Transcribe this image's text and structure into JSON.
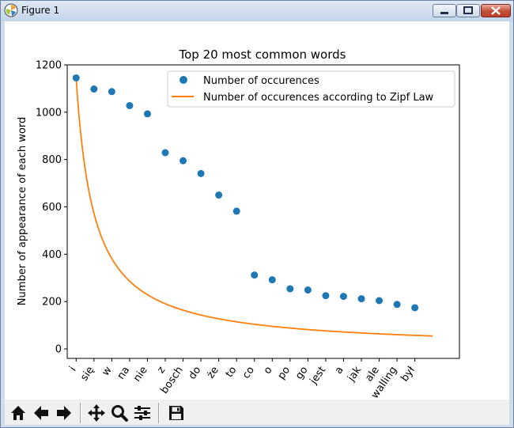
{
  "window": {
    "title": "Figure 1",
    "buttons": {
      "minimize": "minimize",
      "maximize": "maximize",
      "close": "close"
    }
  },
  "toolbar": {
    "items": [
      {
        "name": "home",
        "icon": "home-icon"
      },
      {
        "name": "back",
        "icon": "arrow-left-icon"
      },
      {
        "name": "forward",
        "icon": "arrow-right-icon"
      },
      {
        "name": "pan",
        "icon": "move-icon"
      },
      {
        "name": "zoom",
        "icon": "magnifier-icon"
      },
      {
        "name": "configure-subplots",
        "icon": "sliders-icon"
      },
      {
        "name": "save",
        "icon": "floppy-disk-icon"
      }
    ]
  },
  "chart_data": {
    "type": "scatter",
    "title": "Top 20 most common words",
    "xlabel": "",
    "ylabel": "Number of appearance of each word",
    "categories": [
      "i",
      "się",
      "w",
      "na",
      "nie",
      "z",
      "bosch",
      "do",
      "że",
      "to",
      "co",
      "o",
      "po",
      "go",
      "jest",
      "a",
      "jak",
      "ale",
      "walling",
      "był"
    ],
    "yticks": [
      0,
      200,
      400,
      600,
      800,
      1000,
      1200
    ],
    "ylim": [
      -40,
      1200
    ],
    "legend_position": "top-right",
    "grid": false,
    "series": [
      {
        "name": "Number of occurences",
        "kind": "scatter",
        "color": "#1f77b4",
        "values": [
          1145,
          1098,
          1087,
          1028,
          993,
          829,
          795,
          741,
          650,
          582,
          312,
          292,
          254,
          249,
          225,
          222,
          212,
          204,
          188,
          174
        ]
      },
      {
        "name": "Number of occurences according to Zipf Law",
        "kind": "line",
        "color": "#ff7f0e",
        "coefficient": 1145,
        "x_start": 1,
        "x_end": 21
      }
    ]
  }
}
